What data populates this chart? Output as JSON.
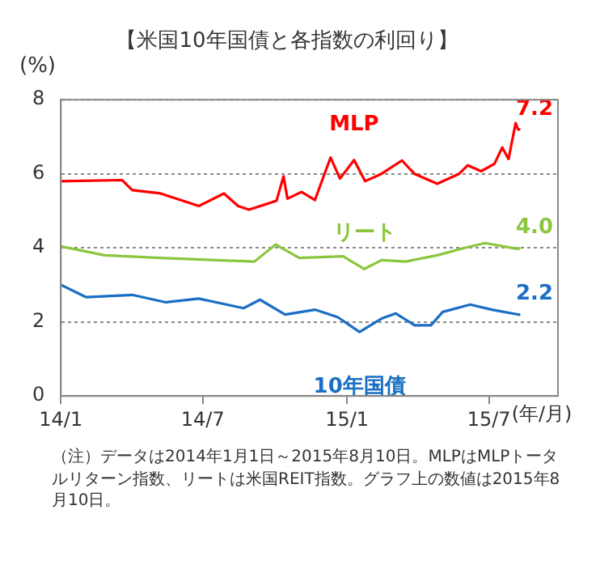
{
  "chart_data": {
    "type": "line",
    "title": "【米国10年国債と各指数の利回り】",
    "ylabel": "(%)",
    "xlabel": "(年/月)",
    "xlim": [
      "2014-01-01",
      "2015-09-27"
    ],
    "xticks": [
      {
        "value": "2014-01-01",
        "label": "14/1"
      },
      {
        "value": "2014-07-01",
        "label": "14/7"
      },
      {
        "value": "2015-01-01",
        "label": "15/1"
      },
      {
        "value": "2015-07-01",
        "label": "15/7"
      }
    ],
    "ylim": [
      0,
      8
    ],
    "yticks": [
      0,
      2,
      4,
      6,
      8
    ],
    "grid": "y",
    "legend": false,
    "marker": "none",
    "line_style": "solid",
    "series": [
      {
        "name": "MLP",
        "color": "#ff0000",
        "x": [
          "2014-01-01",
          "2014-03-20",
          "2014-04-02",
          "2014-05-08",
          "2014-06-26",
          "2014-07-28",
          "2014-08-15",
          "2014-08-29",
          "2014-10-03",
          "2014-10-12",
          "2014-10-17",
          "2014-11-04",
          "2014-11-21",
          "2014-12-11",
          "2014-12-23",
          "2015-01-10",
          "2015-01-24",
          "2015-02-14",
          "2015-03-12",
          "2015-03-28",
          "2015-04-26",
          "2015-05-24",
          "2015-06-04",
          "2015-06-21",
          "2015-07-08",
          "2015-07-18",
          "2015-07-26",
          "2015-08-04",
          "2015-08-07",
          "2015-08-10"
        ],
        "values": [
          5.8,
          5.83,
          5.56,
          5.47,
          5.13,
          5.47,
          5.13,
          5.03,
          5.27,
          5.93,
          5.33,
          5.51,
          5.29,
          6.44,
          5.87,
          6.37,
          5.8,
          6.0,
          6.36,
          6.0,
          5.73,
          6.0,
          6.23,
          6.07,
          6.27,
          6.71,
          6.4,
          7.37,
          7.2,
          7.2
        ]
      },
      {
        "name": "リート",
        "color": "#8cc63f",
        "x": [
          "2014-01-01",
          "2014-02-26",
          "2014-05-08",
          "2014-07-17",
          "2014-09-05",
          "2014-10-02",
          "2014-11-01",
          "2014-12-27",
          "2015-01-23",
          "2015-02-14",
          "2015-03-17",
          "2015-04-26",
          "2015-05-31",
          "2015-06-26",
          "2015-08-07",
          "2015-08-10"
        ],
        "values": [
          4.04,
          3.8,
          3.73,
          3.67,
          3.63,
          4.09,
          3.73,
          3.77,
          3.43,
          3.67,
          3.63,
          3.8,
          4.0,
          4.13,
          3.97,
          4.0
        ]
      },
      {
        "name": "10年国債",
        "color": "#1a6fc4",
        "x": [
          "2014-01-01",
          "2014-02-02",
          "2014-04-02",
          "2014-05-15",
          "2014-06-26",
          "2014-08-22",
          "2014-09-12",
          "2014-10-14",
          "2014-11-21",
          "2014-12-20",
          "2015-01-17",
          "2015-02-14",
          "2015-03-04",
          "2015-03-28",
          "2015-04-18",
          "2015-05-03",
          "2015-06-07",
          "2015-07-05",
          "2015-08-07",
          "2015-08-10"
        ],
        "values": [
          3.0,
          2.67,
          2.73,
          2.53,
          2.63,
          2.37,
          2.6,
          2.2,
          2.33,
          2.13,
          1.73,
          2.09,
          2.23,
          1.91,
          1.91,
          2.27,
          2.47,
          2.33,
          2.2,
          2.2
        ]
      }
    ],
    "annotations": [
      {
        "text": "7.2",
        "x": "2015-08-10",
        "y": 7.2
      },
      {
        "text": "4.0",
        "x": "2015-08-10",
        "y": 4.0
      },
      {
        "text": "2.2",
        "x": "2015-08-10",
        "y": 2.2
      },
      "（注）データは2014年1月1日～2015年8月10日。MLPはMLPトータルリターン指数、リートは米国REIT指数。グラフ上の数値は2015年8月10日。"
    ]
  }
}
